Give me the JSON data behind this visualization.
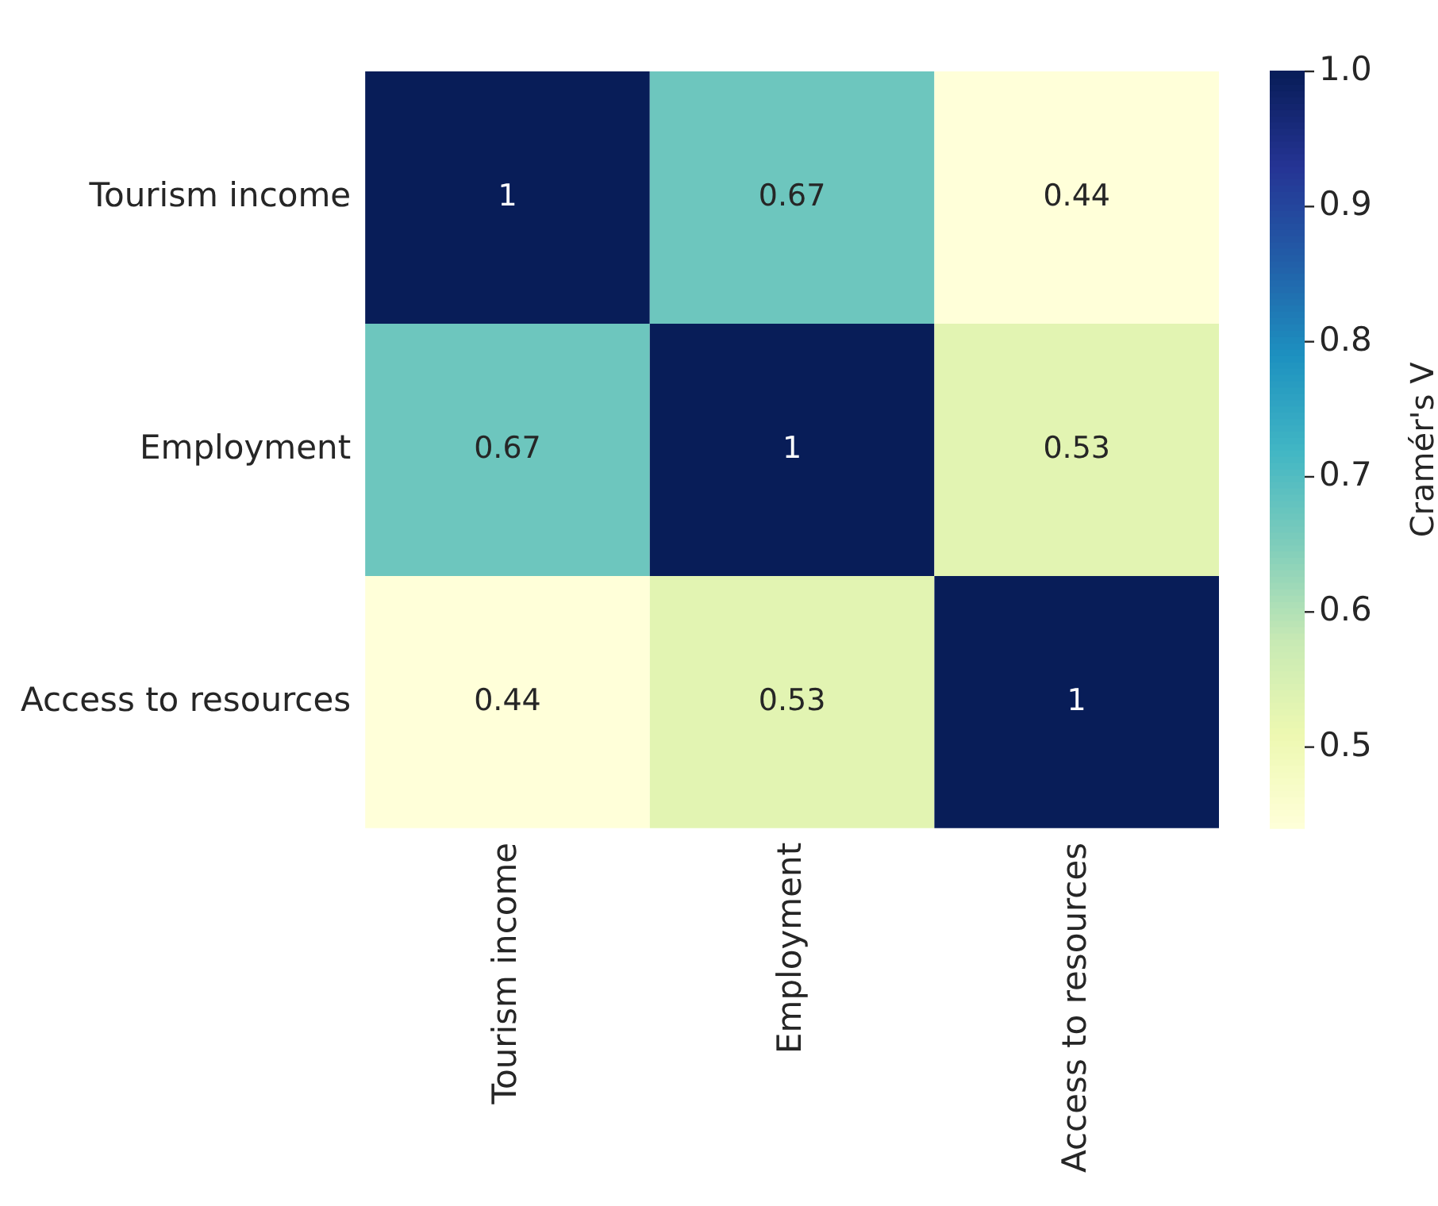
{
  "chart_data": {
    "type": "heatmap",
    "categories": [
      "Tourism income",
      "Employment",
      "Access to resources"
    ],
    "y_categories": [
      "Tourism income",
      "Employment",
      "Access to resources"
    ],
    "cells": [
      [
        1,
        0.67,
        0.44
      ],
      [
        0.67,
        1,
        0.53
      ],
      [
        0.44,
        0.53,
        1
      ]
    ],
    "data_labels": true,
    "clabel": "Cramér's V",
    "clim": [
      0.44,
      1.0
    ],
    "cticks": [
      0.5,
      0.6,
      0.7,
      0.8,
      0.9,
      {
        "value": 1.0,
        "label": "1.0"
      }
    ]
  }
}
